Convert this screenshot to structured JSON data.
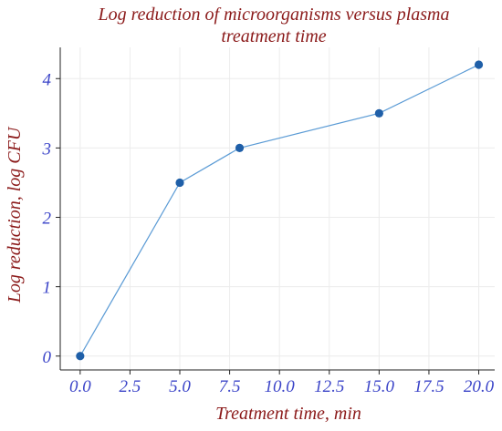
{
  "chart_data": {
    "type": "line",
    "title_line1": "Log reduction of microorganisms versus plasma",
    "title_line2": "treatment time",
    "xlabel": "Treatment time, min",
    "ylabel": "Log reduction, log CFU",
    "x": [
      0.0,
      5.0,
      8.0,
      15.0,
      20.0
    ],
    "series": [
      {
        "values": [
          0,
          2.5,
          3.0,
          3.5,
          4.2
        ]
      }
    ],
    "xlim": [
      -1.0,
      20.8
    ],
    "ylim": [
      -0.2,
      4.45
    ],
    "x_ticks": [
      0.0,
      2.5,
      5.0,
      7.5,
      10.0,
      12.5,
      15.0,
      17.5,
      20.0
    ],
    "x_tick_labels": [
      "0.0",
      "2.5",
      "5.0",
      "7.5",
      "10.0",
      "12.5",
      "15.0",
      "17.5",
      "20.0"
    ],
    "y_ticks": [
      0,
      1,
      2,
      3,
      4
    ],
    "y_tick_labels": [
      "0",
      "1",
      "2",
      "3",
      "4"
    ],
    "grid": true,
    "legend": "none",
    "colors": {
      "line": "#5b9bd5",
      "marker": "#1f5fa8",
      "title": "#8b1a1a",
      "tick_text": "#3b44c8"
    }
  }
}
